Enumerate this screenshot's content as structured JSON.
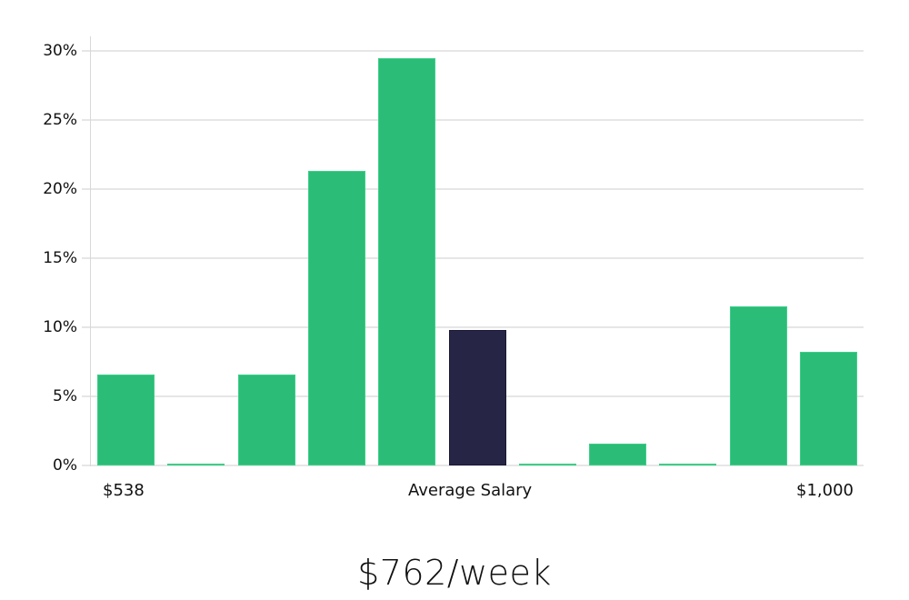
{
  "chart_data": {
    "type": "bar",
    "title": "",
    "xlabel": "Average Salary",
    "ylabel": "",
    "ylim": [
      0,
      30
    ],
    "yticks": [
      "0%",
      "5%",
      "10%",
      "15%",
      "20%",
      "25%",
      "30%"
    ],
    "x_range_labels": {
      "min": "$538",
      "max": "$1,000"
    },
    "grid": true,
    "legend": null,
    "categories": [
      "bin1",
      "bin2",
      "bin3",
      "bin4",
      "bin5",
      "bin6",
      "bin7",
      "bin8",
      "bin9",
      "bin10",
      "bin11"
    ],
    "values": [
      6.6,
      0.1,
      6.6,
      21.3,
      29.5,
      9.8,
      0.1,
      1.6,
      0.1,
      11.5,
      8.2
    ],
    "highlight_index": 5,
    "colors": {
      "default": "#2bbd77",
      "highlight": "#262545",
      "grid": "#e6e6e6"
    }
  },
  "labels": {
    "x_min": "$538",
    "x_center": "Average Salary",
    "x_max": "$1,000",
    "summary": "$762/week"
  }
}
